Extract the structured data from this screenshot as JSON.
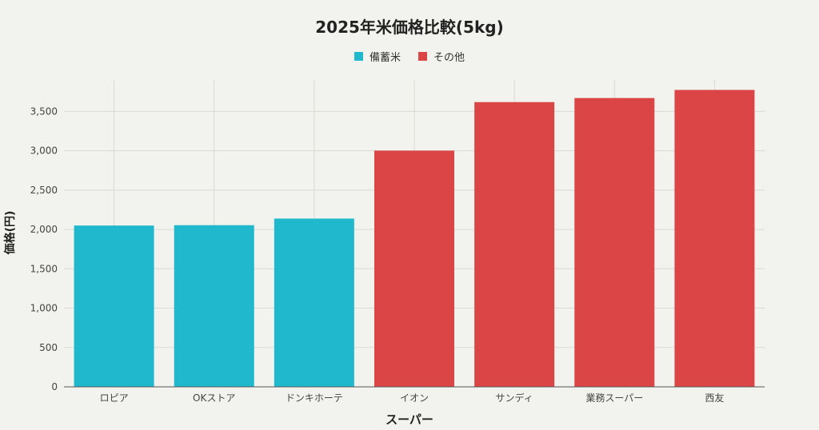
{
  "chart_data": {
    "type": "bar",
    "title": "2025年米価格比較(5kg)",
    "xlabel": "スーパー",
    "ylabel": "価格(円)",
    "categories": [
      "ロピア",
      "OKストア",
      "ドンキホーテ",
      "イオン",
      "サンディ",
      "業務スーパー",
      "西友"
    ],
    "values": [
      2050,
      2054,
      2138,
      3002,
      3618,
      3670,
      3773
    ],
    "groups": [
      "備蓄米",
      "備蓄米",
      "備蓄米",
      "その他",
      "その他",
      "その他",
      "その他"
    ],
    "legend": [
      {
        "label": "備蓄米",
        "color": "#20b8cd"
      },
      {
        "label": "その他",
        "color": "#db4545"
      }
    ],
    "legend_position": "top-center",
    "ylim": [
      0,
      3900
    ],
    "yticks": [
      0,
      500,
      1000,
      1500,
      2000,
      2500,
      3000,
      3500
    ],
    "ytick_labels": [
      "0",
      "500",
      "1,000",
      "1,500",
      "2,000",
      "2,500",
      "3,000",
      "3,500"
    ],
    "grid": true
  }
}
